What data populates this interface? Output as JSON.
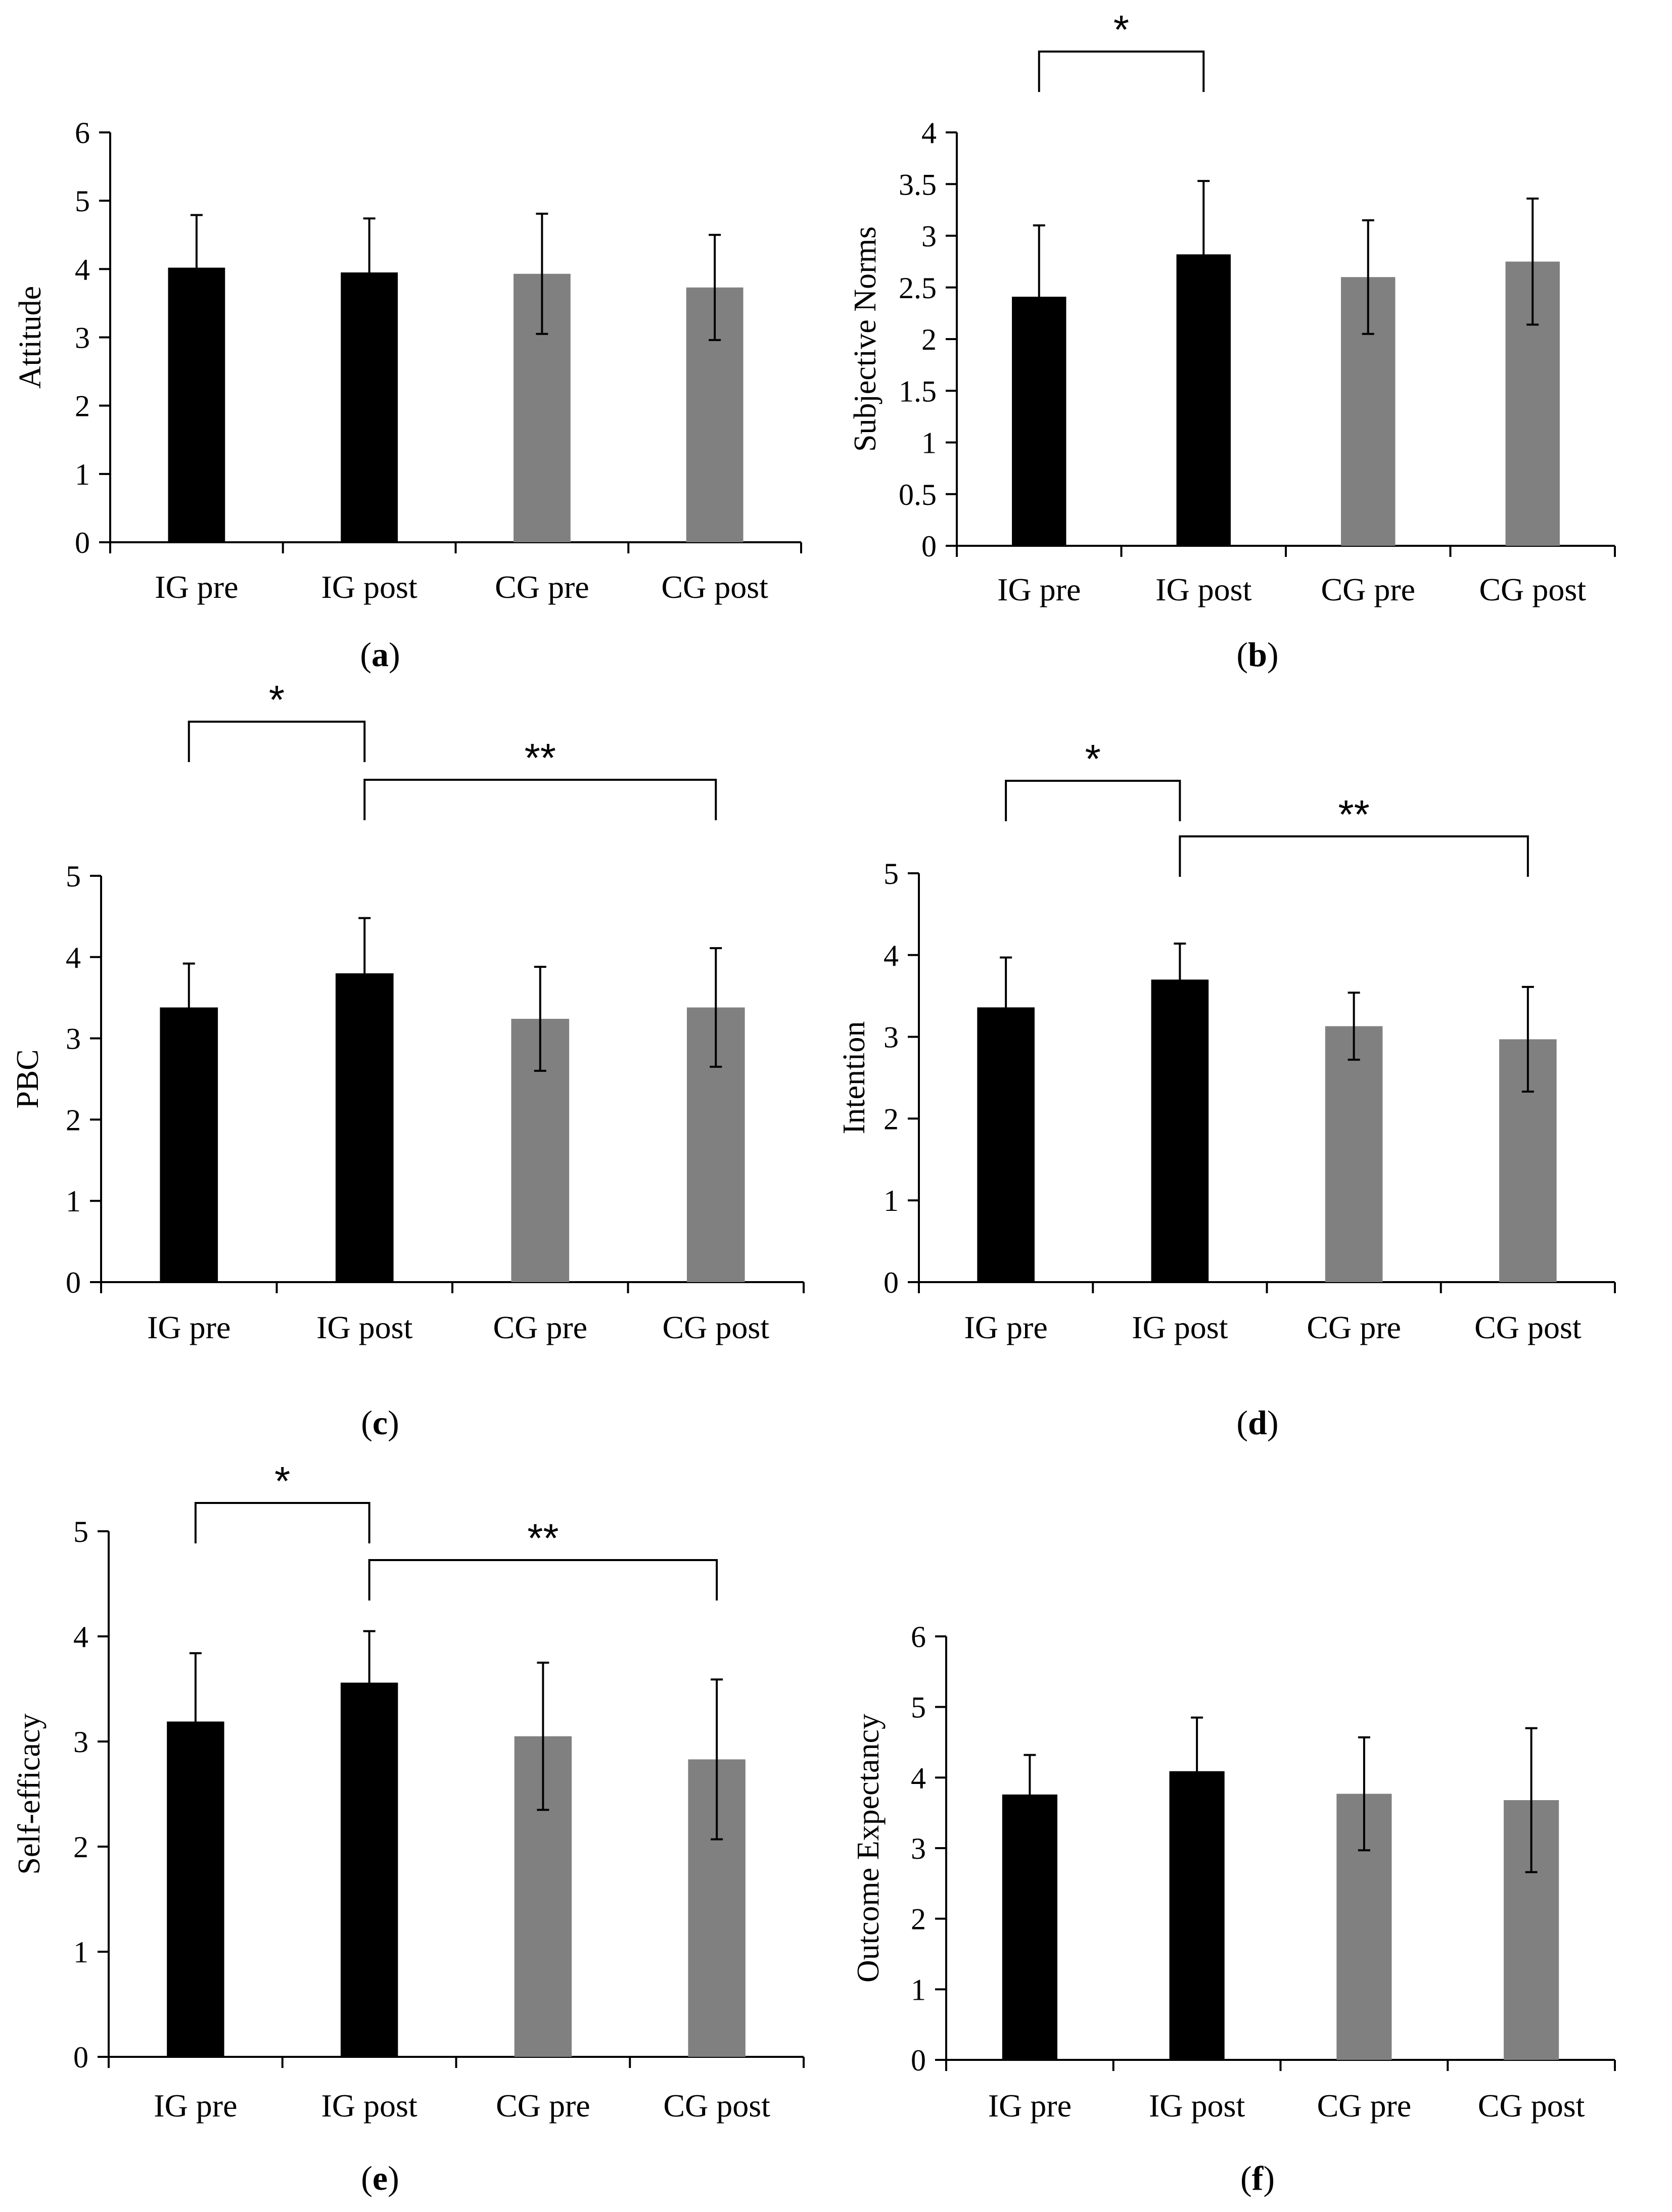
{
  "figure": {
    "colors": {
      "ig": "#000000",
      "cg": "#808080"
    },
    "panel_letters": [
      "a",
      "b",
      "c",
      "d",
      "e",
      "f"
    ]
  },
  "chart_data": [
    {
      "id": "a",
      "type": "bar",
      "title": "",
      "xlabel": "",
      "ylabel": "Attitude",
      "categories": [
        "IG pre",
        "IG post",
        "CG pre",
        "CG post"
      ],
      "values": [
        4.02,
        3.95,
        3.93,
        3.73
      ],
      "errors": [
        0.77,
        0.79,
        0.88,
        0.77
      ],
      "ylim": [
        0,
        6
      ],
      "yticks": [
        0,
        1,
        2,
        3,
        4,
        5,
        6
      ],
      "ytick_labels": [
        "0",
        "1",
        "2",
        "3",
        "4",
        "5",
        "6"
      ],
      "significance": [
        {
          "from": 0,
          "to": 0,
          "label": ""
        }
      ]
    },
    {
      "id": "b",
      "type": "bar",
      "title": "",
      "xlabel": "",
      "ylabel": "Subjective Norms",
      "categories": [
        "IG pre",
        "IG post",
        "CG pre",
        "CG post"
      ],
      "values": [
        2.41,
        2.82,
        2.6,
        2.75
      ],
      "errors": [
        0.69,
        0.71,
        0.55,
        0.61
      ],
      "ylim": [
        0,
        4
      ],
      "yticks": [
        0,
        0.5,
        1,
        1.5,
        2,
        2.5,
        3,
        3.5,
        4
      ],
      "ytick_labels": [
        "0",
        "0.5",
        "1",
        "1.5",
        "2",
        "2.5",
        "3",
        "3.5",
        "4"
      ],
      "significance": [
        {
          "from": 0,
          "to": 1,
          "label": "*"
        }
      ]
    },
    {
      "id": "c",
      "type": "bar",
      "title": "",
      "xlabel": "",
      "ylabel": "PBC",
      "categories": [
        "IG pre",
        "IG post",
        "CG pre",
        "CG post"
      ],
      "values": [
        3.38,
        3.8,
        3.24,
        3.38
      ],
      "errors": [
        0.54,
        0.68,
        0.64,
        0.73
      ],
      "ylim": [
        0,
        5
      ],
      "yticks": [
        0,
        1,
        2,
        3,
        4,
        5
      ],
      "ytick_labels": [
        "0",
        "1",
        "2",
        "3",
        "4",
        "5"
      ],
      "significance": [
        {
          "from": 0,
          "to": 1,
          "label": "*"
        },
        {
          "from": 1,
          "to": 3,
          "label": "**"
        }
      ]
    },
    {
      "id": "d",
      "type": "bar",
      "title": "",
      "xlabel": "",
      "ylabel": "Intention",
      "categories": [
        "IG pre",
        "IG post",
        "CG pre",
        "CG post"
      ],
      "values": [
        3.36,
        3.7,
        3.13,
        2.97
      ],
      "errors": [
        0.61,
        0.44,
        0.41,
        0.64
      ],
      "ylim": [
        0,
        5
      ],
      "yticks": [
        0,
        1,
        2,
        3,
        4,
        5
      ],
      "ytick_labels": [
        "0",
        "1",
        "2",
        "3",
        "4",
        "5"
      ],
      "significance": [
        {
          "from": 0,
          "to": 1,
          "label": "*"
        },
        {
          "from": 1,
          "to": 3,
          "label": "**"
        }
      ]
    },
    {
      "id": "e",
      "type": "bar",
      "title": "",
      "xlabel": "",
      "ylabel": "Self-efficacy",
      "categories": [
        "IG pre",
        "IG post",
        "CG pre",
        "CG post"
      ],
      "values": [
        3.19,
        3.56,
        3.05,
        2.83
      ],
      "errors": [
        0.65,
        0.49,
        0.7,
        0.76
      ],
      "ylim": [
        0,
        5
      ],
      "yticks": [
        0,
        1,
        2,
        3,
        4,
        5
      ],
      "ytick_labels": [
        "0",
        "1",
        "2",
        "3",
        "4",
        "5"
      ],
      "significance": [
        {
          "from": 0,
          "to": 1,
          "label": "*"
        },
        {
          "from": 1,
          "to": 3,
          "label": "**"
        }
      ]
    },
    {
      "id": "f",
      "type": "bar",
      "title": "",
      "xlabel": "",
      "ylabel": "Outcome Expectancy",
      "categories": [
        "IG pre",
        "IG post",
        "CG pre",
        "CG post"
      ],
      "values": [
        3.76,
        4.09,
        3.77,
        3.68
      ],
      "errors": [
        0.56,
        0.76,
        0.8,
        1.02
      ],
      "ylim": [
        0,
        6
      ],
      "yticks": [
        0,
        1,
        2,
        3,
        4,
        5,
        6
      ],
      "ytick_labels": [
        "0",
        "1",
        "2",
        "3",
        "4",
        "5",
        "6"
      ],
      "significance": [
        {
          "from": 0,
          "to": 0,
          "label": ""
        }
      ]
    }
  ]
}
